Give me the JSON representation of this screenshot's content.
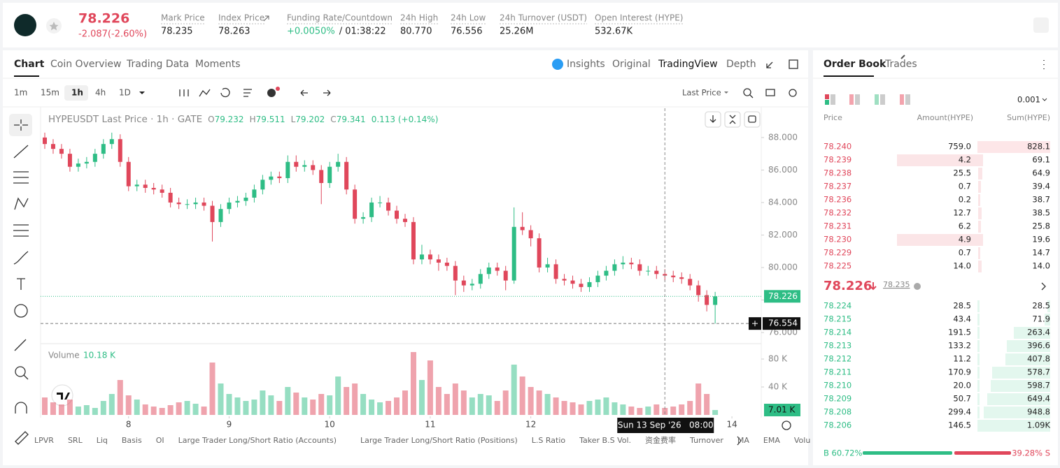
{
  "header": {
    "price": "78.226",
    "change": "-2.087(-2.60%)",
    "stats": [
      {
        "label": "Mark Price",
        "value": "78.235"
      },
      {
        "label": "Index Price",
        "value": "78.263"
      },
      {
        "label": "Funding Rate/Countdown",
        "value": "+0.0050%",
        "extra": "/ 01:38:22"
      },
      {
        "label": "24h High",
        "value": "80.770"
      },
      {
        "label": "24h Low",
        "value": "76.556"
      },
      {
        "label": "24h Turnover (USDT)",
        "value": "25.26M"
      },
      {
        "label": "Open Interest (HYPE)",
        "value": "532.67K"
      }
    ]
  },
  "tabs": [
    "Chart",
    "Coin Overview",
    "Trading Data",
    "Moments"
  ],
  "view_tabs": [
    "Insights",
    "Original",
    "TradingView",
    "Depth"
  ],
  "intervals": [
    "1m",
    "15m",
    "1h",
    "4h",
    "1D"
  ],
  "price_type": "Last Price",
  "legend": {
    "title": "HYPEUSDT Last Price · 1h · GATE",
    "ohlc": [
      {
        "k": "O",
        "v": "79.232"
      },
      {
        "k": "H",
        "v": "79.511"
      },
      {
        "k": "L",
        "v": "79.202"
      },
      {
        "k": "C",
        "v": "79.341"
      }
    ],
    "change": "0.113 (+0.14%)",
    "volume_title": "Volume",
    "volume_value": "10.18 K"
  },
  "chart_data": {
    "type": "candlestick",
    "up_color": "#2ebd85",
    "down_color": "#e0475b",
    "x": [
      4,
      6,
      8,
      10,
      12,
      14,
      16,
      18,
      20,
      22,
      24,
      26,
      28,
      30,
      32,
      34,
      36,
      38,
      40,
      42,
      44,
      46,
      48,
      50,
      52,
      54,
      56,
      58,
      60,
      62,
      64,
      66,
      68,
      70,
      72,
      74,
      76,
      78,
      80,
      82,
      84,
      86,
      88,
      90,
      92,
      94,
      96,
      98,
      100,
      102,
      104,
      106,
      108,
      110,
      112,
      114,
      116,
      118,
      120,
      122,
      124,
      126,
      128,
      130,
      132,
      134,
      136,
      138,
      140,
      142,
      144,
      146,
      148,
      150,
      152,
      154,
      156,
      158,
      160,
      162,
      164
    ],
    "open": [
      88.0,
      87.6,
      87.3,
      87.0,
      86.2,
      86.4,
      86.5,
      87.0,
      87.6,
      87.9,
      86.5,
      85.0,
      85.1,
      84.9,
      84.8,
      84.6,
      84.0,
      83.9,
      83.9,
      84.0,
      83.8,
      82.8,
      83.6,
      84.0,
      84.1,
      84.3,
      84.8,
      85.4,
      85.6,
      85.5,
      86.5,
      86.2,
      86.3,
      86.0,
      85.2,
      86.2,
      86.5,
      84.8,
      83.0,
      83.1,
      84.0,
      84.0,
      83.5,
      83.0,
      82.8,
      80.5,
      80.8,
      80.5,
      80.3,
      80.1,
      79.2,
      78.9,
      79.0,
      79.6,
      80.0,
      79.8,
      79.2,
      82.5,
      82.3,
      81.8,
      80.0,
      80.2,
      79.3,
      79.2,
      79.0,
      78.8,
      79.1,
      79.5,
      79.8,
      80.2,
      80.3,
      80.2,
      79.8,
      79.8,
      79.6,
      79.5,
      79.4,
      79.3,
      78.9,
      78.3,
      77.7
    ],
    "high": [
      88.3,
      87.9,
      87.6,
      87.3,
      86.7,
      86.8,
      87.3,
      87.9,
      88.3,
      88.2,
      86.8,
      85.4,
      85.4,
      85.2,
      85.1,
      84.9,
      84.3,
      84.2,
      84.3,
      84.3,
      84.1,
      83.9,
      84.3,
      84.4,
      84.6,
      85.1,
      85.7,
      85.9,
      85.9,
      86.9,
      86.9,
      86.6,
      86.6,
      86.3,
      86.5,
      87.0,
      86.8,
      85.1,
      83.4,
      84.3,
      84.4,
      84.3,
      83.8,
      83.3,
      83.1,
      81.4,
      81.1,
      80.8,
      80.6,
      80.4,
      79.5,
      79.3,
      79.9,
      80.3,
      80.3,
      80.1,
      83.7,
      83.4,
      82.6,
      82.1,
      80.6,
      80.5,
      79.6,
      79.5,
      79.3,
      79.4,
      79.8,
      80.1,
      80.5,
      80.7,
      80.6,
      80.5,
      80.1,
      80.1,
      79.9,
      79.8,
      79.7,
      79.6,
      79.2,
      78.6,
      78.5
    ],
    "low": [
      87.3,
      87.0,
      86.7,
      85.9,
      85.9,
      86.1,
      86.2,
      86.7,
      87.3,
      86.2,
      84.7,
      84.7,
      84.6,
      84.5,
      84.3,
      83.7,
      83.6,
      83.6,
      83.6,
      83.5,
      81.6,
      82.5,
      83.3,
      83.7,
      83.8,
      84.0,
      84.5,
      85.1,
      85.2,
      85.2,
      85.9,
      85.9,
      85.7,
      83.9,
      84.9,
      85.9,
      84.5,
      82.7,
      82.7,
      82.8,
      83.7,
      83.2,
      82.7,
      82.5,
      80.2,
      80.2,
      80.2,
      79.8,
      79.8,
      78.3,
      78.5,
      78.6,
      78.7,
      79.3,
      79.5,
      78.6,
      79.0,
      82.0,
      81.3,
      79.7,
      79.7,
      79.0,
      78.9,
      78.7,
      78.5,
      78.5,
      78.8,
      79.2,
      79.5,
      79.9,
      79.9,
      79.5,
      79.5,
      79.3,
      79.2,
      79.1,
      79.0,
      78.6,
      77.9,
      77.3,
      76.55
    ],
    "close": [
      87.6,
      87.3,
      87.0,
      86.2,
      86.4,
      86.5,
      87.0,
      87.6,
      87.9,
      86.5,
      85.0,
      85.1,
      84.9,
      84.8,
      84.6,
      84.0,
      83.9,
      83.9,
      84.0,
      83.8,
      82.8,
      83.6,
      84.0,
      84.1,
      84.3,
      84.8,
      85.4,
      85.6,
      85.5,
      86.5,
      86.2,
      86.3,
      86.0,
      85.2,
      86.2,
      86.5,
      84.8,
      83.0,
      83.1,
      84.0,
      84.0,
      83.5,
      83.0,
      82.8,
      80.5,
      80.8,
      80.5,
      80.3,
      80.1,
      79.2,
      78.9,
      79.0,
      79.6,
      80.0,
      79.8,
      79.2,
      82.5,
      82.3,
      81.8,
      80.0,
      80.2,
      79.3,
      79.2,
      79.0,
      78.8,
      79.1,
      79.5,
      79.8,
      80.2,
      80.3,
      80.2,
      79.8,
      79.8,
      79.6,
      79.5,
      79.4,
      79.3,
      78.9,
      78.3,
      77.7,
      78.226
    ],
    "volume": [
      25,
      18,
      15,
      22,
      12,
      14,
      10,
      20,
      30,
      50,
      28,
      22,
      15,
      12,
      10,
      14,
      18,
      20,
      16,
      12,
      75,
      45,
      30,
      25,
      20,
      22,
      35,
      28,
      20,
      40,
      32,
      25,
      22,
      30,
      28,
      55,
      40,
      45,
      30,
      22,
      18,
      20,
      25,
      35,
      90,
      50,
      78,
      40,
      30,
      45,
      35,
      25,
      30,
      28,
      20,
      35,
      72,
      55,
      40,
      35,
      30,
      25,
      20,
      18,
      15,
      20,
      22,
      25,
      18,
      15,
      12,
      10,
      12,
      15,
      10,
      12,
      15,
      20,
      45,
      30,
      7.01
    ],
    "volume_last_label": "7.01 K",
    "xlim": [
      3,
      175
    ],
    "xticks": [
      {
        "value": 24,
        "label": "8"
      },
      {
        "value": 48,
        "label": "9"
      },
      {
        "value": 72,
        "label": "10"
      },
      {
        "value": 96,
        "label": "11"
      },
      {
        "value": 120,
        "label": "12"
      },
      {
        "value": 168,
        "label": "14"
      }
    ],
    "ylim": [
      75.4,
      89.8
    ],
    "yticks": [
      {
        "value": 76,
        "label": "76.000"
      },
      {
        "value": 78,
        "label": "78.000"
      },
      {
        "value": 80,
        "label": "80.000"
      },
      {
        "value": 82,
        "label": "82.000"
      },
      {
        "value": 84,
        "label": "84.000"
      },
      {
        "value": 86,
        "label": "86.000"
      },
      {
        "value": 88,
        "label": "88.000"
      }
    ],
    "y2lim": [
      0,
      100
    ],
    "y2ticks": [
      {
        "value": 40,
        "label": "40 K"
      },
      {
        "value": 80,
        "label": "80 K"
      }
    ],
    "last_price": 78.226,
    "crosshair": {
      "x": 152,
      "price": 76.554,
      "label": "Sun 13 Sep '26   08:00"
    }
  },
  "indicators": [
    "LPVR",
    "SRL",
    "Liq",
    "Basis",
    "OI",
    "Large Trader Long/Short Ratio (Accounts)",
    "Large Trader Long/Short Ratio (Positions)",
    "L.S Ratio",
    "Taker B.S Vol.",
    "资金费率",
    "Turnover",
    "MA",
    "EMA",
    "Volu"
  ],
  "order_book": {
    "tabs": [
      "Order Book",
      "Trades"
    ],
    "precision": "0.001",
    "columns": [
      "Price",
      "Amount(HYPE)",
      "Sum(HYPE)"
    ],
    "asks": [
      [
        "78.240",
        "759.0",
        "828.1"
      ],
      [
        "78.239",
        "4.2",
        "69.1"
      ],
      [
        "78.238",
        "25.5",
        "64.9"
      ],
      [
        "78.237",
        "0.7",
        "39.4"
      ],
      [
        "78.236",
        "0.2",
        "38.7"
      ],
      [
        "78.232",
        "12.7",
        "38.5"
      ],
      [
        "78.231",
        "6.2",
        "25.8"
      ],
      [
        "78.230",
        "4.9",
        "19.6"
      ],
      [
        "78.229",
        "0.7",
        "14.7"
      ],
      [
        "78.225",
        "14.0",
        "14.0"
      ]
    ],
    "mid": "78.226",
    "mark": "78.235",
    "bids": [
      [
        "78.224",
        "28.5",
        "28.5"
      ],
      [
        "78.215",
        "43.4",
        "71.9"
      ],
      [
        "78.214",
        "191.5",
        "263.4"
      ],
      [
        "78.213",
        "133.2",
        "396.6"
      ],
      [
        "78.212",
        "11.2",
        "407.8"
      ],
      [
        "78.211",
        "170.9",
        "578.7"
      ],
      [
        "78.210",
        "20.0",
        "598.7"
      ],
      [
        "78.209",
        "50.7",
        "649.4"
      ],
      [
        "78.208",
        "299.4",
        "948.8"
      ],
      [
        "78.206",
        "146.5",
        "1.09K"
      ]
    ],
    "buy_ratio": "B 60.72%",
    "sell_ratio": "39.28% S"
  }
}
